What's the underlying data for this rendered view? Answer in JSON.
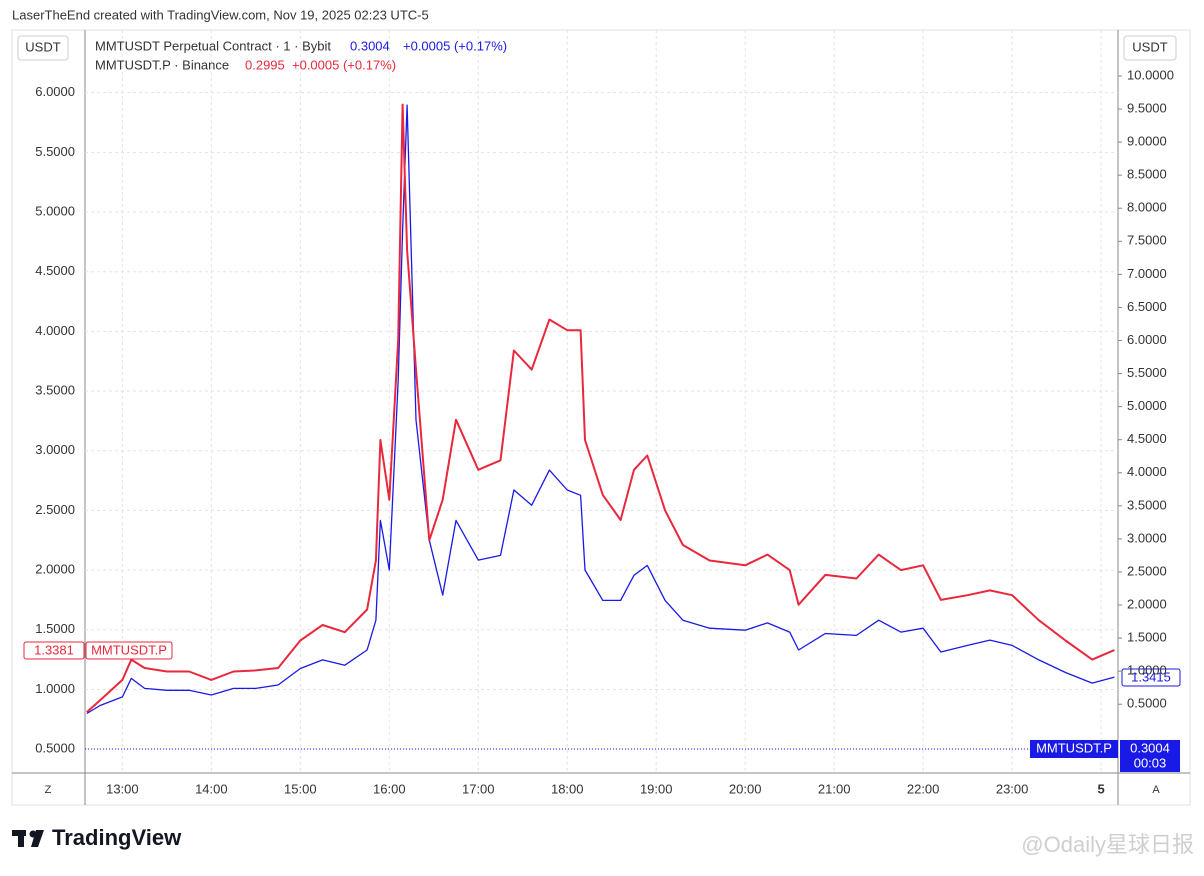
{
  "chart_data": {
    "type": "line",
    "title": "LaserTheEnd created with TradingView.com, Nov 19, 2025 02:23 UTC-5",
    "y_label": "USDT",
    "y2_label": "USDT",
    "x": [
      12.6,
      12.75,
      13.0,
      13.1,
      13.25,
      13.5,
      13.75,
      14.0,
      14.25,
      14.5,
      14.75,
      15.0,
      15.25,
      15.5,
      15.75,
      15.85,
      15.9,
      16.0,
      16.1,
      16.15,
      16.2,
      16.3,
      16.45,
      16.6,
      16.75,
      17.0,
      17.25,
      17.4,
      17.6,
      17.8,
      18.0,
      18.15,
      18.2,
      18.4,
      18.6,
      18.75,
      18.9,
      19.1,
      19.3,
      19.6,
      20.0,
      20.25,
      20.5,
      20.6,
      20.9,
      21.25,
      21.5,
      21.75,
      22.0,
      22.2,
      22.5,
      22.75,
      23.0,
      23.3,
      23.6,
      23.9,
      24.15
    ],
    "xlim": [
      12.58,
      24.19
    ],
    "xticks": [
      {
        "value": 13,
        "label": "13:00"
      },
      {
        "value": 14,
        "label": "14:00"
      },
      {
        "value": 15,
        "label": "15:00"
      },
      {
        "value": 16,
        "label": "16:00"
      },
      {
        "value": 17,
        "label": "17:00"
      },
      {
        "value": 18,
        "label": "18:00"
      },
      {
        "value": 19,
        "label": "19:00"
      },
      {
        "value": 20,
        "label": "20:00"
      },
      {
        "value": 21,
        "label": "21:00"
      },
      {
        "value": 22,
        "label": "22:00"
      },
      {
        "value": 23,
        "label": "23:00"
      },
      {
        "value": 24,
        "label": "5"
      }
    ],
    "ylim": [
      0.3,
      6.5
    ],
    "yticks": [
      {
        "value": 0.5,
        "label": "0.5000"
      },
      {
        "value": 1.0,
        "label": "1.0000"
      },
      {
        "value": 1.5,
        "label": "1.5000"
      },
      {
        "value": 2.0,
        "label": "2.0000"
      },
      {
        "value": 2.5,
        "label": "2.5000"
      },
      {
        "value": 3.0,
        "label": "3.0000"
      },
      {
        "value": 3.5,
        "label": "3.5000"
      },
      {
        "value": 4.0,
        "label": "4.0000"
      },
      {
        "value": 4.5,
        "label": "4.5000"
      },
      {
        "value": 5.0,
        "label": "5.0000"
      },
      {
        "value": 5.5,
        "label": "5.5000"
      },
      {
        "value": 6.0,
        "label": "6.0000"
      }
    ],
    "y2lim": [
      -0.54,
      10.65
    ],
    "y2ticks": [
      {
        "value": 0.5,
        "label": "0.5000"
      },
      {
        "value": 1.0,
        "label": "1.0000"
      },
      {
        "value": 1.5,
        "label": "1.5000"
      },
      {
        "value": 2.0,
        "label": "2.0000"
      },
      {
        "value": 2.5,
        "label": "2.5000"
      },
      {
        "value": 3.0,
        "label": "3.0000"
      },
      {
        "value": 3.5,
        "label": "3.5000"
      },
      {
        "value": 4.0,
        "label": "4.0000"
      },
      {
        "value": 4.5,
        "label": "4.5000"
      },
      {
        "value": 5.0,
        "label": "5.0000"
      },
      {
        "value": 5.5,
        "label": "5.5000"
      },
      {
        "value": 6.0,
        "label": "6.0000"
      },
      {
        "value": 6.5,
        "label": "6.5000"
      },
      {
        "value": 7.0,
        "label": "7.0000"
      },
      {
        "value": 7.5,
        "label": "7.5000"
      },
      {
        "value": 8.0,
        "label": "8.0000"
      },
      {
        "value": 8.5,
        "label": "8.5000"
      },
      {
        "value": 9.0,
        "label": "9.0000"
      },
      {
        "value": 9.5,
        "label": "9.5000"
      },
      {
        "value": 10.0,
        "label": "10.0000"
      }
    ],
    "grid": true,
    "series": [
      {
        "name": "MMTUSDT Perpetual Contract · 1 · Bybit",
        "color": "#1a1ae6",
        "axis": "y2",
        "legend_price": "0.3004",
        "legend_change": "+0.0005 (+0.17%)",
        "values": [
          0.36,
          0.48,
          0.61,
          0.89,
          0.74,
          0.71,
          0.71,
          0.64,
          0.74,
          0.74,
          0.79,
          1.04,
          1.17,
          1.09,
          1.32,
          1.77,
          3.28,
          2.53,
          5.4,
          7.67,
          9.56,
          4.8,
          2.98,
          2.15,
          3.28,
          2.68,
          2.75,
          3.74,
          3.51,
          4.04,
          3.74,
          3.66,
          2.53,
          2.07,
          2.07,
          2.45,
          2.6,
          2.07,
          1.77,
          1.65,
          1.62,
          1.73,
          1.59,
          1.32,
          1.57,
          1.54,
          1.77,
          1.59,
          1.65,
          1.29,
          1.39,
          1.47,
          1.39,
          1.17,
          0.98,
          0.82,
          0.91
        ]
      },
      {
        "name": "MMTUSDT.P · Binance",
        "color": "#e8283c",
        "axis": "y",
        "legend_price": "0.2995",
        "legend_change": "+0.0005 (+0.17%)",
        "values": [
          0.81,
          0.91,
          1.08,
          1.25,
          1.18,
          1.15,
          1.15,
          1.08,
          1.15,
          1.16,
          1.18,
          1.41,
          1.54,
          1.48,
          1.67,
          2.08,
          3.09,
          2.59,
          3.93,
          5.9,
          4.68,
          3.68,
          2.25,
          2.59,
          3.26,
          2.84,
          2.92,
          3.84,
          3.68,
          4.1,
          4.01,
          4.01,
          3.09,
          2.63,
          2.42,
          2.84,
          2.96,
          2.5,
          2.21,
          2.08,
          2.04,
          2.13,
          2.0,
          1.71,
          1.96,
          1.93,
          2.13,
          2.0,
          2.04,
          1.75,
          1.79,
          1.83,
          1.79,
          1.58,
          1.41,
          1.25,
          1.33
        ]
      }
    ],
    "price_labels": {
      "red_price": "1.3381",
      "red_name": "MMTUSDT.P",
      "blue_price": "1.3415",
      "blue_name": "MMTUSDT.P",
      "last_price": "0.3004",
      "countdown": "00:03"
    },
    "corner_left": "Z",
    "corner_right": "A",
    "brand": "TradingView",
    "watermark": "@Odaily星球日报"
  }
}
